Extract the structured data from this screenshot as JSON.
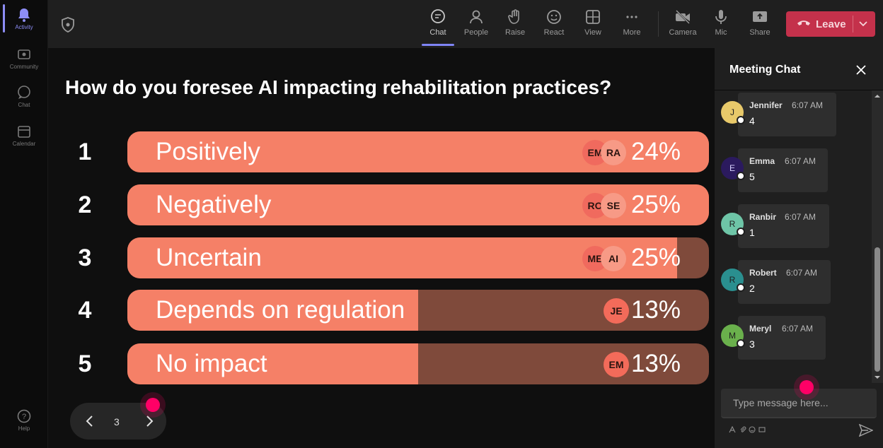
{
  "rail": {
    "items": [
      {
        "label": "Activity",
        "icon": "bell-icon",
        "active": true
      },
      {
        "label": "Community",
        "icon": "community-icon"
      },
      {
        "label": "Chat",
        "icon": "chat-icon"
      },
      {
        "label": "Calendar",
        "icon": "calendar-icon"
      }
    ],
    "help": {
      "label": "Help",
      "icon": "help-icon"
    }
  },
  "toolbar": {
    "buttons": [
      {
        "label": "Chat",
        "icon": "chat-icon",
        "active": true
      },
      {
        "label": "People",
        "icon": "people-icon"
      },
      {
        "label": "Raise",
        "icon": "hand-icon"
      },
      {
        "label": "React",
        "icon": "smiley-icon"
      },
      {
        "label": "View",
        "icon": "grid-icon"
      },
      {
        "label": "More",
        "icon": "ellipsis-icon"
      },
      {
        "label": "Camera",
        "icon": "camera-off-icon"
      },
      {
        "label": "Mic",
        "icon": "mic-icon"
      },
      {
        "label": "Share",
        "icon": "share-icon"
      }
    ],
    "leave_label": "Leave",
    "leave_color": "#c4314b"
  },
  "poll": {
    "question": "How do you foresee AI impacting rehabilitation practices?",
    "options": [
      {
        "num": "1",
        "label": "Positively",
        "percent": "24%",
        "fill": 1.0,
        "avatars": [
          "EM",
          "RA"
        ]
      },
      {
        "num": "2",
        "label": "Negatively",
        "percent": "25%",
        "fill": 1.0,
        "avatars": [
          "RO",
          "SE"
        ]
      },
      {
        "num": "3",
        "label": "Uncertain",
        "percent": "25%",
        "fill": 0.945,
        "avatars": [
          "ME",
          "AI"
        ]
      },
      {
        "num": "4",
        "label": "Depends on regulation",
        "percent": "13%",
        "fill": 0.5,
        "avatars": [
          "JE"
        ]
      },
      {
        "num": "5",
        "label": "No impact",
        "percent": "13%",
        "fill": 0.5,
        "avatars": [
          "EM"
        ]
      }
    ],
    "bar_color": "#f58067",
    "track_color": "#7f4a3b",
    "pager": {
      "page": "3"
    }
  },
  "chat": {
    "title": "Meeting Chat",
    "messages": [
      {
        "initial": "J",
        "name": "Jennifer",
        "time": "6:07 AM",
        "text": "4",
        "avatar_color": "#e8c96a"
      },
      {
        "initial": "E",
        "name": "Emma",
        "time": "6:07 AM",
        "text": "5",
        "avatar_color": "#2b1a5e"
      },
      {
        "initial": "R",
        "name": "Ranbir",
        "time": "6:07 AM",
        "text": "1",
        "avatar_color": "#6ec5a7"
      },
      {
        "initial": "R",
        "name": "Robert",
        "time": "6:07 AM",
        "text": "2",
        "avatar_color": "#2a8f8f"
      },
      {
        "initial": "M",
        "name": "Meryl",
        "time": "6:07 AM",
        "text": "3",
        "avatar_color": "#6ab04c"
      }
    ],
    "compose_placeholder": "Type message here..."
  }
}
